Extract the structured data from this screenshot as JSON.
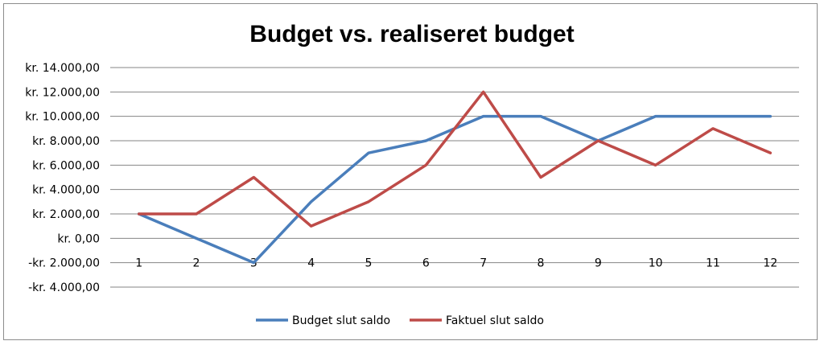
{
  "chart_data": {
    "type": "line",
    "title": "Budget vs. realiseret budget",
    "x": [
      "1",
      "2",
      "3",
      "4",
      "5",
      "6",
      "7",
      "8",
      "9",
      "10",
      "11",
      "12"
    ],
    "y_tick_labels": [
      "kr. 14.000,00",
      "kr. 12.000,00",
      "kr. 10.000,00",
      "kr. 8.000,00",
      "kr. 6.000,00",
      "kr. 4.000,00",
      "kr. 2.000,00",
      "kr. 0,00",
      "-kr. 2.000,00",
      "-kr. 4.000,00"
    ],
    "y_ticks": [
      14000,
      12000,
      10000,
      8000,
      6000,
      4000,
      2000,
      0,
      -2000,
      -4000
    ],
    "ylim": [
      -4000,
      14000
    ],
    "grid": true,
    "legend_position": "bottom",
    "series": [
      {
        "name": "Budget slut saldo",
        "color": "#4a7ebb",
        "values": [
          2000,
          0,
          -2000,
          3000,
          7000,
          8000,
          10000,
          10000,
          8000,
          10000,
          10000,
          10000
        ]
      },
      {
        "name": "Faktuel slut saldo",
        "color": "#be4b48",
        "values": [
          2000,
          2000,
          5000,
          1000,
          3000,
          6000,
          12000,
          5000,
          8000,
          6000,
          9000,
          7000
        ]
      }
    ]
  }
}
